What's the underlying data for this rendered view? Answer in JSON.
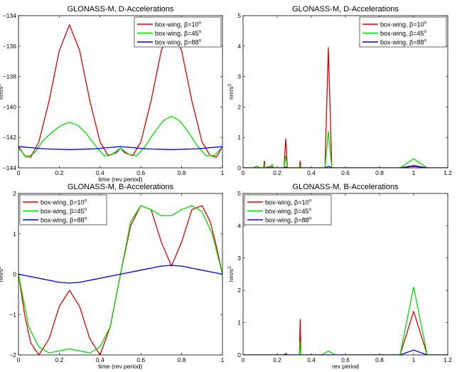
{
  "chart_data": [
    {
      "type": "line",
      "title": "GLONASS-M, D-Accelerations",
      "xlabel": "time (rev period)",
      "ylabel": "nm/s",
      "ylabel_sup": "2",
      "xlim": [
        0,
        1
      ],
      "ylim": [
        -144,
        -134
      ],
      "xticks": [
        0,
        0.2,
        0.4,
        0.6,
        0.8,
        1
      ],
      "xtick_labels": [
        "0",
        "0.2",
        "0.4",
        "0.6",
        "0.8",
        "1"
      ],
      "yticks": [
        -144,
        -142,
        -140,
        -138,
        -136,
        -134
      ],
      "ytick_labels": [
        "-144",
        "-142",
        "-140",
        "-138",
        "-136",
        "-134"
      ],
      "legend_position": "top-right",
      "series": [
        {
          "name": "box-wing, β=10",
          "name_sup": "o",
          "color": "#e00000",
          "x": [
            0,
            0.03,
            0.06,
            0.1,
            0.15,
            0.2,
            0.25,
            0.3,
            0.35,
            0.4,
            0.44,
            0.48,
            0.5,
            0.52,
            0.56,
            0.6,
            0.65,
            0.7,
            0.75,
            0.8,
            0.85,
            0.9,
            0.94,
            0.97,
            1
          ],
          "y": [
            -142.6,
            -143.2,
            -143.3,
            -142.3,
            -139.6,
            -136.3,
            -134.6,
            -136.3,
            -139.6,
            -142.3,
            -143.2,
            -143.0,
            -142.7,
            -143.0,
            -143.2,
            -142.3,
            -139.6,
            -136.3,
            -134.6,
            -136.3,
            -139.6,
            -142.3,
            -143.2,
            -143.3,
            -142.6
          ]
        },
        {
          "name": "box-wing, β=45",
          "name_sup": "o",
          "color": "#00dd00",
          "x": [
            0,
            0.04,
            0.08,
            0.12,
            0.17,
            0.21,
            0.25,
            0.29,
            0.33,
            0.38,
            0.42,
            0.46,
            0.5,
            0.54,
            0.58,
            0.62,
            0.67,
            0.71,
            0.75,
            0.79,
            0.83,
            0.88,
            0.92,
            0.96,
            1
          ],
          "y": [
            -142.7,
            -143.3,
            -143.0,
            -142.2,
            -141.6,
            -141.2,
            -141.0,
            -141.2,
            -141.7,
            -142.6,
            -143.2,
            -143.1,
            -142.7,
            -143.1,
            -143.2,
            -142.6,
            -141.6,
            -140.9,
            -140.6,
            -140.9,
            -141.6,
            -142.6,
            -143.2,
            -143.2,
            -142.6
          ]
        },
        {
          "name": "box-wing, β=88",
          "name_sup": "o",
          "color": "#0000dd",
          "x": [
            0,
            0.125,
            0.25,
            0.375,
            0.5,
            0.625,
            0.75,
            0.875,
            1
          ],
          "y": [
            -142.6,
            -142.75,
            -142.8,
            -142.75,
            -142.6,
            -142.75,
            -142.8,
            -142.75,
            -142.6
          ]
        }
      ]
    },
    {
      "type": "line",
      "title": "GLONASS-M, D-Accelerations",
      "xlabel": "",
      "ylabel": "nm/s",
      "ylabel_sup": "2",
      "xlim": [
        0,
        1.2
      ],
      "ylim": [
        0,
        5
      ],
      "xticks": [
        0,
        0.2,
        0.4,
        0.6,
        0.8,
        1,
        1.2
      ],
      "xtick_labels": [
        "0",
        "0.2",
        "0.4",
        "0.6",
        "0.8",
        "1",
        "1.2"
      ],
      "yticks": [
        0,
        1,
        2,
        3,
        4,
        5
      ],
      "ytick_labels": [
        "0",
        "1",
        "2",
        "3",
        "4",
        "5"
      ],
      "legend_position": "top-right",
      "series": [
        {
          "name": "box-wing, β=10",
          "name_sup": "o",
          "color": "#e00000",
          "x": [
            0,
            0.06,
            0.08,
            0.1,
            0.12,
            0.125,
            0.13,
            0.16,
            0.18,
            0.2,
            0.24,
            0.25,
            0.26,
            0.3,
            0.33,
            0.335,
            0.34,
            0.4,
            0.45,
            0.48,
            0.5,
            0.52,
            0.55,
            0.6,
            0.8,
            0.92,
            1.0,
            1.08,
            1.2
          ],
          "y": [
            0,
            0,
            0.05,
            0,
            0,
            0.22,
            0,
            0.05,
            0,
            0,
            0,
            0.95,
            0,
            0,
            0,
            0.22,
            0,
            0,
            0,
            0,
            3.95,
            0,
            0,
            0,
            0,
            0,
            0.08,
            0,
            0
          ]
        },
        {
          "name": "box-wing, β=45",
          "name_sup": "o",
          "color": "#00dd00",
          "x": [
            0,
            0.06,
            0.08,
            0.1,
            0.12,
            0.125,
            0.13,
            0.16,
            0.17,
            0.18,
            0.2,
            0.24,
            0.25,
            0.26,
            0.3,
            0.33,
            0.335,
            0.34,
            0.4,
            0.45,
            0.48,
            0.5,
            0.52,
            0.55,
            0.6,
            0.8,
            0.92,
            1.0,
            1.08,
            1.2
          ],
          "y": [
            0,
            0,
            0.05,
            0,
            0,
            0.12,
            0,
            0,
            0.12,
            0,
            0,
            0,
            0.4,
            0,
            0,
            0,
            0.1,
            0,
            0,
            0,
            0,
            1.2,
            0,
            0,
            0,
            0,
            0,
            0.3,
            0,
            0
          ]
        },
        {
          "name": "box-wing, β=88",
          "name_sup": "o",
          "color": "#0000dd",
          "x": [
            0,
            0.2,
            0.24,
            0.25,
            0.26,
            0.3,
            0.48,
            0.5,
            0.52,
            0.8,
            0.92,
            1.0,
            1.08,
            1.2
          ],
          "y": [
            0,
            0,
            0,
            0.03,
            0,
            0,
            0,
            0.05,
            0,
            0,
            0,
            0.05,
            0,
            0
          ]
        }
      ]
    },
    {
      "type": "line",
      "title": "GLONASS-M, B-Accelerations",
      "xlabel": "time (rev period)",
      "ylabel": "nm/s",
      "ylabel_sup": "2",
      "xlim": [
        0,
        1
      ],
      "ylim": [
        -2,
        2
      ],
      "xticks": [
        0,
        0.2,
        0.4,
        0.6,
        0.8,
        1
      ],
      "xtick_labels": [
        "0",
        "0.2",
        "0.4",
        "0.6",
        "0.8",
        "1"
      ],
      "yticks": [
        -2,
        -1,
        0,
        1,
        2
      ],
      "ytick_labels": [
        "-2",
        "-1",
        "0",
        "1",
        "2"
      ],
      "legend_position": "top-left",
      "series": [
        {
          "name": "box-wing, β=10",
          "name_sup": "o",
          "color": "#e00000",
          "x": [
            0,
            0.03,
            0.06,
            0.1,
            0.15,
            0.2,
            0.25,
            0.3,
            0.35,
            0.4,
            0.45,
            0.5,
            0.55,
            0.6,
            0.65,
            0.7,
            0.75,
            0.8,
            0.85,
            0.9,
            0.94,
            0.97,
            1
          ],
          "y": [
            0,
            -1.0,
            -1.7,
            -2.0,
            -1.6,
            -0.8,
            -0.4,
            -0.8,
            -1.6,
            -2.0,
            -1.3,
            0,
            1.2,
            1.7,
            1.6,
            0.8,
            0.2,
            0.8,
            1.6,
            1.7,
            1.3,
            0.7,
            0
          ]
        },
        {
          "name": "box-wing, β=45",
          "name_sup": "o",
          "color": "#00dd00",
          "x": [
            0,
            0.05,
            0.1,
            0.15,
            0.2,
            0.25,
            0.3,
            0.35,
            0.4,
            0.45,
            0.5,
            0.55,
            0.6,
            0.65,
            0.7,
            0.75,
            0.8,
            0.85,
            0.9,
            0.95,
            1
          ],
          "y": [
            0,
            -1.3,
            -1.8,
            -1.95,
            -1.9,
            -1.85,
            -1.9,
            -1.95,
            -1.8,
            -1.3,
            0,
            1.3,
            1.7,
            1.6,
            1.45,
            1.45,
            1.6,
            1.7,
            1.55,
            1.0,
            0
          ]
        },
        {
          "name": "box-wing, β=88",
          "name_sup": "o",
          "color": "#0000dd",
          "x": [
            0,
            0.1,
            0.2,
            0.25,
            0.3,
            0.4,
            0.5,
            0.6,
            0.7,
            0.75,
            0.8,
            0.9,
            1
          ],
          "y": [
            0,
            -0.1,
            -0.2,
            -0.22,
            -0.2,
            -0.1,
            0,
            0.1,
            0.2,
            0.22,
            0.2,
            0.1,
            0
          ]
        }
      ]
    },
    {
      "type": "line",
      "title": "GLONASS-M, B-Accelerations",
      "xlabel": "rev period",
      "ylabel": "nm/s",
      "ylabel_sup": "2",
      "xlim": [
        0,
        1.2
      ],
      "ylim": [
        0,
        5
      ],
      "xticks": [
        0,
        0.2,
        0.4,
        0.6,
        0.8,
        1,
        1.2
      ],
      "xtick_labels": [
        "0",
        "0.2",
        "0.4",
        "0.6",
        "0.8",
        "1",
        "1.2"
      ],
      "yticks": [
        0,
        1,
        2,
        3,
        4,
        5
      ],
      "ytick_labels": [
        "0",
        "1",
        "2",
        "3",
        "4",
        "5"
      ],
      "legend_position": "top-left",
      "series": [
        {
          "name": "box-wing, β=10",
          "name_sup": "o",
          "color": "#e00000",
          "x": [
            0,
            0.2,
            0.24,
            0.25,
            0.26,
            0.3,
            0.33,
            0.335,
            0.34,
            0.4,
            0.8,
            0.92,
            1.0,
            1.08,
            1.2
          ],
          "y": [
            0,
            0,
            0,
            0.05,
            0,
            0,
            0,
            1.1,
            0,
            0,
            0,
            0,
            1.35,
            0,
            0
          ]
        },
        {
          "name": "box-wing, β=45",
          "name_sup": "o",
          "color": "#00dd00",
          "x": [
            0,
            0.3,
            0.33,
            0.335,
            0.34,
            0.46,
            0.5,
            0.54,
            0.8,
            0.92,
            1.0,
            1.08,
            1.2
          ],
          "y": [
            0,
            0,
            0,
            0.4,
            0,
            0,
            0.12,
            0,
            0,
            0,
            2.1,
            0,
            0
          ]
        },
        {
          "name": "box-wing, β=88",
          "name_sup": "o",
          "color": "#0000dd",
          "x": [
            0,
            0.8,
            0.92,
            1.0,
            1.08,
            1.2
          ],
          "y": [
            0,
            0,
            0,
            0.15,
            0,
            0
          ]
        }
      ]
    }
  ]
}
